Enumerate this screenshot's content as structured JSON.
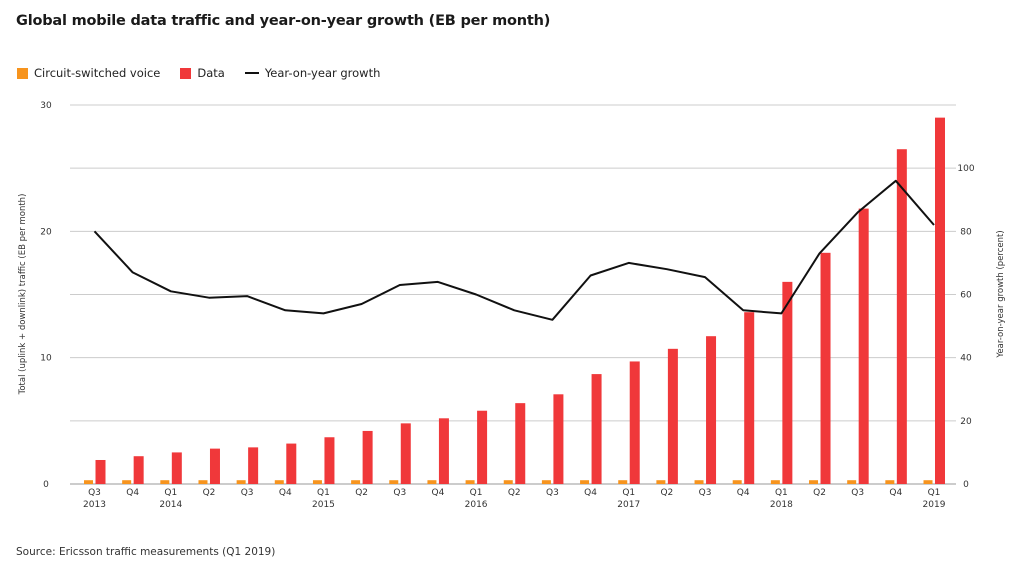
{
  "title": "Global mobile data traffic and year-on-year growth (EB per month)",
  "source": "Source: Ericsson traffic measurements (Q1 2019)",
  "legend": {
    "voice": "Circuit-switched voice",
    "data": "Data",
    "growth": "Year-on-year growth"
  },
  "colors": {
    "voice": "#f7941d",
    "data": "#f0383a",
    "growth": "#111111",
    "grid": "#cccccc"
  },
  "chart_data": {
    "type": "bar",
    "categories": [
      [
        "Q3",
        "2013"
      ],
      [
        "Q4",
        ""
      ],
      [
        "Q1",
        "2014"
      ],
      [
        "Q2",
        ""
      ],
      [
        "Q3",
        ""
      ],
      [
        "Q4",
        ""
      ],
      [
        "Q1",
        "2015"
      ],
      [
        "Q2",
        ""
      ],
      [
        "Q3",
        ""
      ],
      [
        "Q4",
        ""
      ],
      [
        "Q1",
        "2016"
      ],
      [
        "Q2",
        ""
      ],
      [
        "Q3",
        ""
      ],
      [
        "Q4",
        ""
      ],
      [
        "Q1",
        "2017"
      ],
      [
        "Q2",
        ""
      ],
      [
        "Q3",
        ""
      ],
      [
        "Q4",
        ""
      ],
      [
        "Q1",
        "2018"
      ],
      [
        "Q2",
        ""
      ],
      [
        "Q3",
        ""
      ],
      [
        "Q4",
        ""
      ],
      [
        "Q1",
        "2019"
      ]
    ],
    "series": [
      {
        "name": "Circuit-switched voice",
        "axis": "left",
        "values": [
          0.3,
          0.3,
          0.3,
          0.3,
          0.3,
          0.3,
          0.3,
          0.3,
          0.3,
          0.3,
          0.3,
          0.3,
          0.3,
          0.3,
          0.3,
          0.3,
          0.3,
          0.3,
          0.3,
          0.3,
          0.3,
          0.3,
          0.3
        ]
      },
      {
        "name": "Data",
        "axis": "left",
        "values": [
          1.9,
          2.2,
          2.5,
          2.8,
          2.9,
          3.2,
          3.7,
          4.2,
          4.8,
          5.2,
          5.8,
          6.4,
          7.1,
          8.7,
          9.7,
          10.7,
          11.7,
          13.6,
          16.0,
          18.3,
          21.8,
          26.5,
          29.0
        ]
      },
      {
        "name": "Year-on-year growth",
        "axis": "right",
        "type": "line",
        "values": [
          80,
          67,
          61,
          59,
          59.5,
          55,
          54,
          57,
          63,
          64,
          60,
          55,
          52,
          66,
          70,
          68,
          65.5,
          55,
          54,
          73,
          86,
          96,
          82
        ]
      }
    ],
    "y_left": {
      "label": "Total (uplink + downlink) traffic (EB per month)",
      "ticks": [
        0,
        10,
        20,
        30
      ],
      "ylim": [
        0,
        30
      ]
    },
    "y_right": {
      "label": "Year-on-year growth (percent)",
      "ticks": [
        0,
        20,
        40,
        60,
        80,
        100
      ],
      "ylim": [
        0,
        120
      ]
    },
    "grid": true,
    "legend_position": "top-left"
  }
}
